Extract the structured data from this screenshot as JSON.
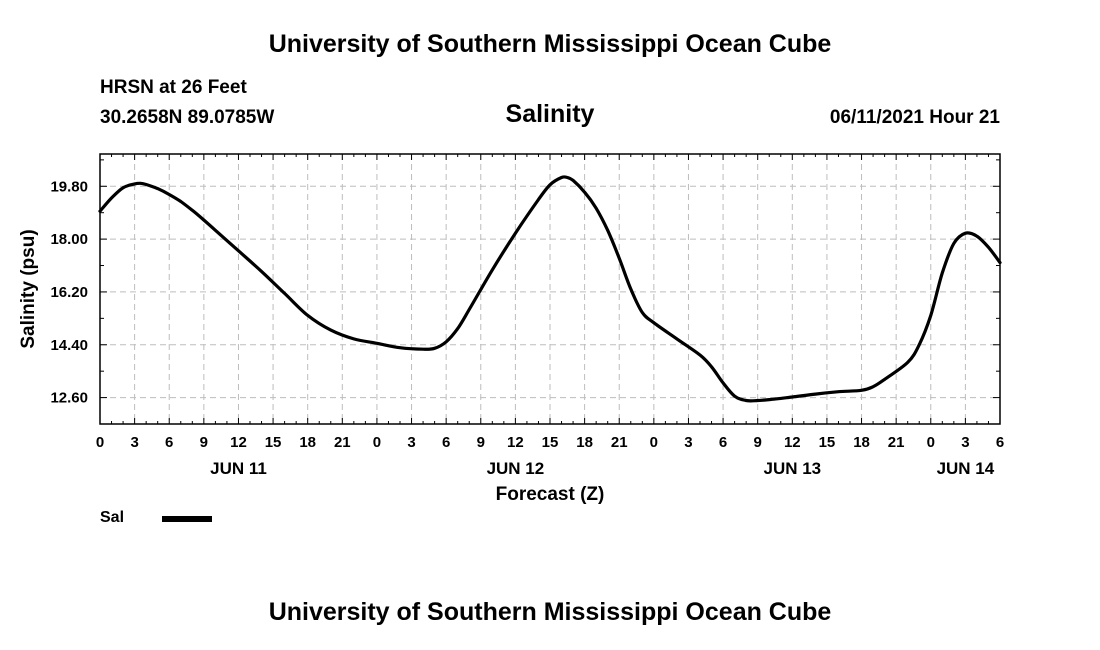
{
  "header": {
    "title": "University of Southern Mississippi Ocean Cube",
    "station": "HRSN at 26 Feet",
    "coordinates": "30.2658N  89.0785W",
    "chart_name": "Salinity",
    "datetime": "06/11/2021 Hour 21"
  },
  "footer": {
    "title": "University of Southern Mississippi Ocean Cube"
  },
  "legend": {
    "label": "Sal",
    "color": "#000000"
  },
  "chart_data": {
    "type": "line",
    "title": "Salinity",
    "xlabel": "Forecast (Z)",
    "ylabel": "Salinity (psu)",
    "xlim": [
      0,
      78
    ],
    "ylim": [
      11.7,
      20.9
    ],
    "yticks": [
      12.6,
      14.4,
      16.2,
      18.0,
      19.8
    ],
    "ytick_labels": [
      "12.60",
      "14.40",
      "16.20",
      "18.00",
      "19.80"
    ],
    "xticks": [
      0,
      3,
      6,
      9,
      12,
      15,
      18,
      21,
      24,
      27,
      30,
      33,
      36,
      39,
      42,
      45,
      48,
      51,
      54,
      57,
      60,
      63,
      66,
      69,
      72,
      75,
      78
    ],
    "xtick_labels": [
      "0",
      "3",
      "6",
      "9",
      "12",
      "15",
      "18",
      "21",
      "0",
      "3",
      "6",
      "9",
      "12",
      "15",
      "18",
      "21",
      "0",
      "3",
      "6",
      "9",
      "12",
      "15",
      "18",
      "21",
      "0",
      "3",
      "6"
    ],
    "day_labels": [
      {
        "text": "JUN 11",
        "x": 12
      },
      {
        "text": "JUN 12",
        "x": 36
      },
      {
        "text": "JUN 13",
        "x": 60
      },
      {
        "text": "JUN 14",
        "x": 75
      }
    ],
    "grid": true,
    "series": [
      {
        "name": "Sal",
        "color": "#000000",
        "x": [
          0,
          1,
          2,
          3,
          3.5,
          4,
          5,
          6,
          7,
          8,
          9,
          10,
          12,
          14,
          16,
          18,
          20,
          22,
          24,
          26,
          28,
          29,
          30,
          31,
          32,
          34,
          36,
          38,
          39,
          40,
          40.5,
          41,
          42,
          43,
          44,
          45,
          46,
          47,
          48,
          50,
          52,
          53,
          54,
          55,
          56,
          57,
          58,
          60,
          62,
          64,
          66,
          67,
          68,
          70,
          71,
          72,
          73,
          74,
          75,
          76,
          77,
          78
        ],
        "values": [
          18.95,
          19.4,
          19.75,
          19.88,
          19.9,
          19.86,
          19.72,
          19.52,
          19.28,
          18.98,
          18.65,
          18.3,
          17.6,
          16.9,
          16.15,
          15.4,
          14.9,
          14.6,
          14.45,
          14.3,
          14.25,
          14.28,
          14.5,
          14.95,
          15.6,
          16.95,
          18.2,
          19.35,
          19.85,
          20.1,
          20.1,
          20.0,
          19.6,
          19.05,
          18.3,
          17.35,
          16.3,
          15.5,
          15.15,
          14.6,
          14.05,
          13.65,
          13.1,
          12.65,
          12.5,
          12.5,
          12.53,
          12.62,
          12.72,
          12.8,
          12.85,
          12.97,
          13.22,
          13.8,
          14.4,
          15.4,
          16.85,
          17.85,
          18.2,
          18.1,
          17.72,
          17.2
        ]
      }
    ]
  }
}
